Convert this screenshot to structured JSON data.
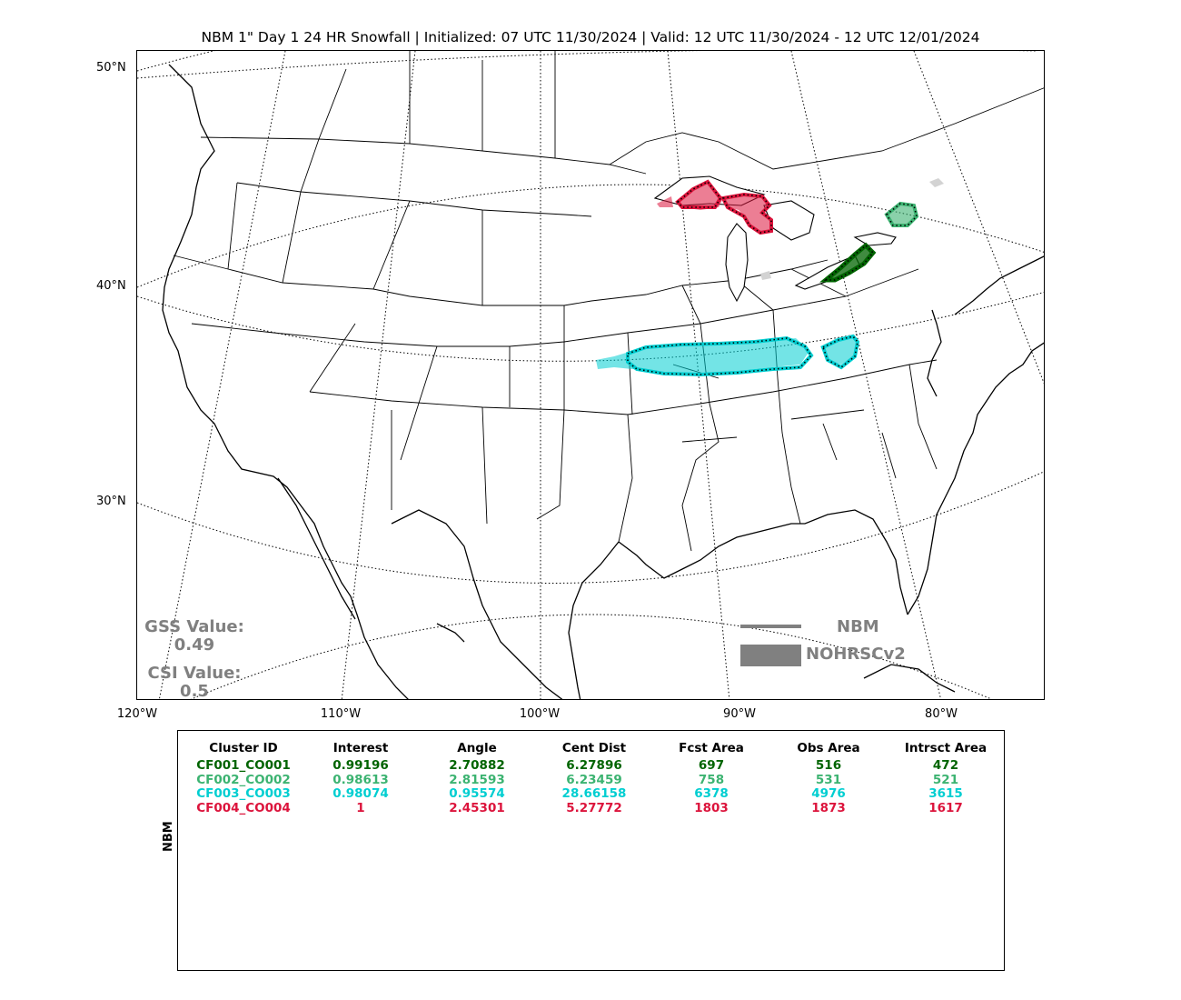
{
  "title": "NBM 1\" Day 1 24 HR Snowfall | Initialized: 07 UTC 11/30/2024 | Valid: 12 UTC 11/30/2024 - 12 UTC 12/01/2024",
  "map": {
    "lat_labels": [
      "50°N",
      "40°N",
      "30°N"
    ],
    "lon_labels": [
      "120°W",
      "110°W",
      "100°W",
      "90°W",
      "80°W"
    ]
  },
  "stats": {
    "gss_label": "GSS Value:",
    "gss_value": "0.49",
    "csi_label": "CSI Value:",
    "csi_value": "0.5"
  },
  "legend": {
    "forecast_label": "NBM",
    "observed_label": "NOHRSCv2",
    "color": "#808080"
  },
  "table": {
    "ylabel": "NBM",
    "headers": [
      "Cluster ID",
      "Interest",
      "Angle",
      "Cent Dist",
      "Fcst Area",
      "Obs Area",
      "Intrsct Area"
    ],
    "rows": [
      {
        "color": "#006400",
        "cells": [
          "CF001_CO001",
          "0.99196",
          "2.70882",
          "6.27896",
          "697",
          "516",
          "472"
        ]
      },
      {
        "color": "#3cb371",
        "cells": [
          "CF002_CO002",
          "0.98613",
          "2.81593",
          "6.23459",
          "758",
          "531",
          "521"
        ]
      },
      {
        "color": "#00ced1",
        "cells": [
          "CF003_CO003",
          "0.98074",
          "0.95574",
          "28.66158",
          "6378",
          "4976",
          "3615"
        ]
      },
      {
        "color": "#dc143c",
        "cells": [
          "CF004_CO004",
          "1",
          "2.45301",
          "5.27772",
          "1803",
          "1873",
          "1617"
        ]
      }
    ]
  },
  "colors": {
    "cluster1": "#006400",
    "cluster2": "#3cb371",
    "cluster3": "#00ced1",
    "cluster4": "#dc143c",
    "unmatched": "#d3d3d3"
  }
}
